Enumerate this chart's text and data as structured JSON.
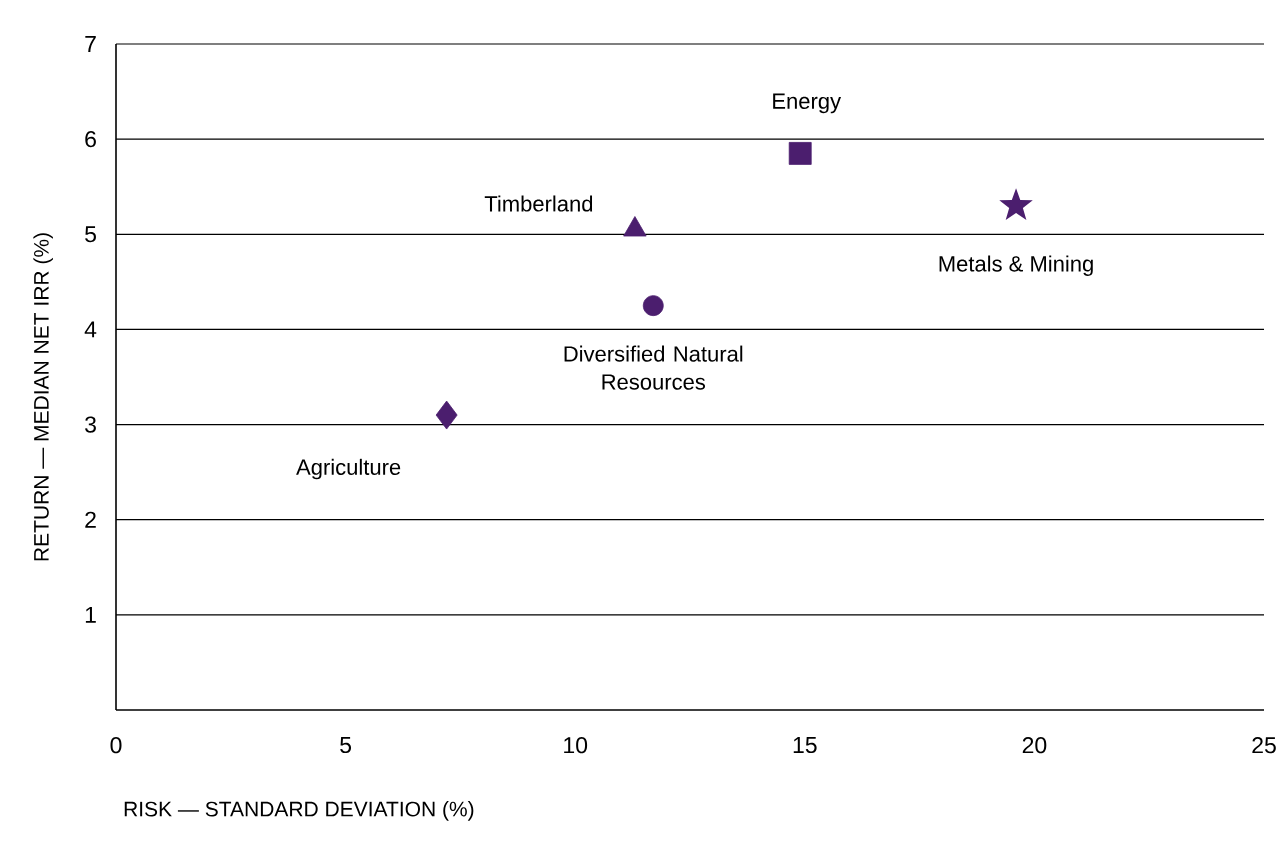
{
  "chart_data": {
    "type": "scatter",
    "xlabel": "RISK — STANDARD DEVIATION (%)",
    "ylabel": "RETURN — MEDIAN NET IRR (%)",
    "xlim": [
      0,
      25
    ],
    "ylim": [
      0,
      7
    ],
    "xticks": [
      0,
      5,
      10,
      15,
      20,
      25
    ],
    "yticks": [
      1,
      2,
      3,
      4,
      5,
      6,
      7
    ],
    "grid": "y",
    "series": [
      {
        "name": "Agriculture",
        "color": "#4b1e6e",
        "marker": "diamond",
        "x": [
          7.2
        ],
        "values": [
          3.1
        ]
      },
      {
        "name": "Diversified Natural Resources",
        "color": "#4b1e6e",
        "marker": "circle",
        "x": [
          11.7
        ],
        "values": [
          4.25
        ]
      },
      {
        "name": "Timberland",
        "color": "#4b1e6e",
        "marker": "triangle",
        "x": [
          11.3
        ],
        "values": [
          5.05
        ]
      },
      {
        "name": "Energy",
        "color": "#4b1e6e",
        "marker": "square",
        "x": [
          14.9
        ],
        "values": [
          5.85
        ]
      },
      {
        "name": "Metals & Mining",
        "color": "#4b1e6e",
        "marker": "star",
        "x": [
          19.6
        ],
        "values": [
          5.3
        ]
      }
    ]
  }
}
